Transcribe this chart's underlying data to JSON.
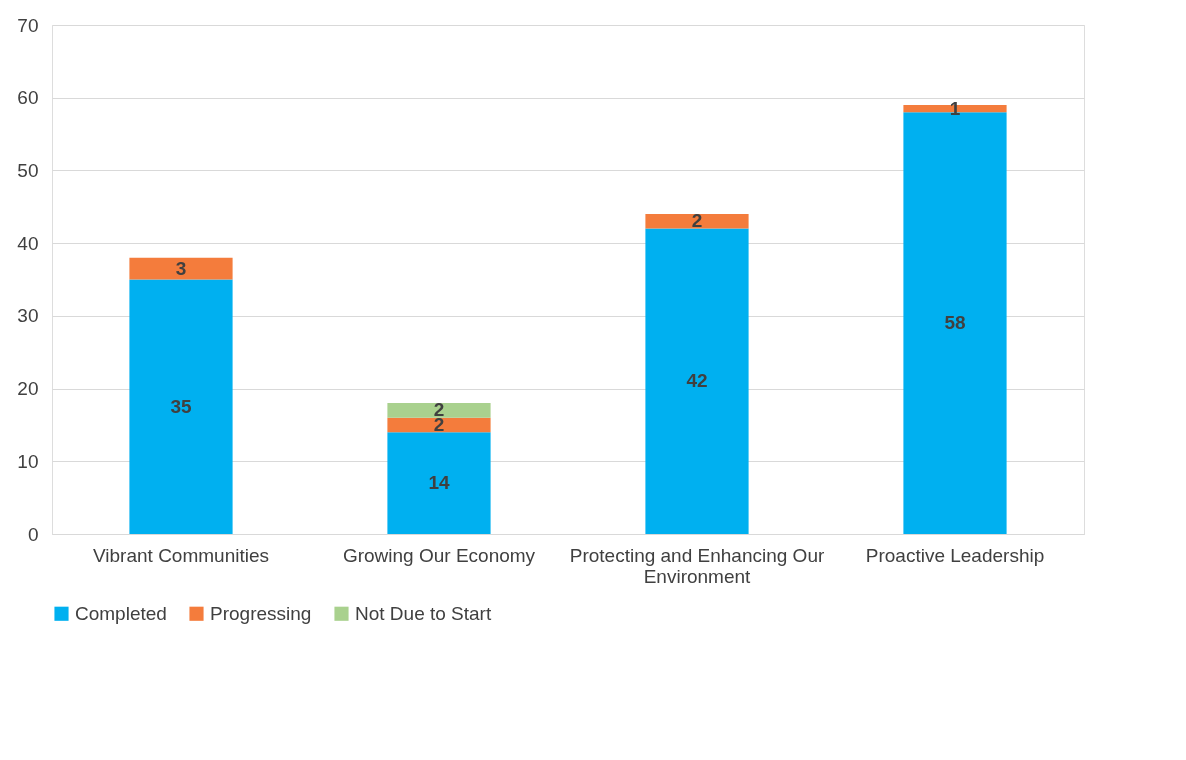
{
  "chart_data": {
    "type": "bar",
    "stacked": true,
    "categories": [
      "Vibrant Communities",
      "Growing Our Economy",
      "Protecting and Enhancing Our Environment",
      "Proactive Leadership"
    ],
    "series": [
      {
        "name": "Completed",
        "color": "#00b0f0",
        "values": [
          35,
          14,
          42,
          58
        ]
      },
      {
        "name": "Progressing",
        "color": "#f47c3c",
        "values": [
          3,
          2,
          2,
          1
        ]
      },
      {
        "name": "Not Due to Start",
        "color": "#a9d18e",
        "values": [
          null,
          2,
          null,
          null
        ]
      }
    ],
    "ylim": [
      0,
      70
    ],
    "yticks": [
      0,
      10,
      20,
      30,
      40,
      50,
      60,
      70
    ],
    "grid": "y",
    "legend": "bottom",
    "data_labels": true
  }
}
